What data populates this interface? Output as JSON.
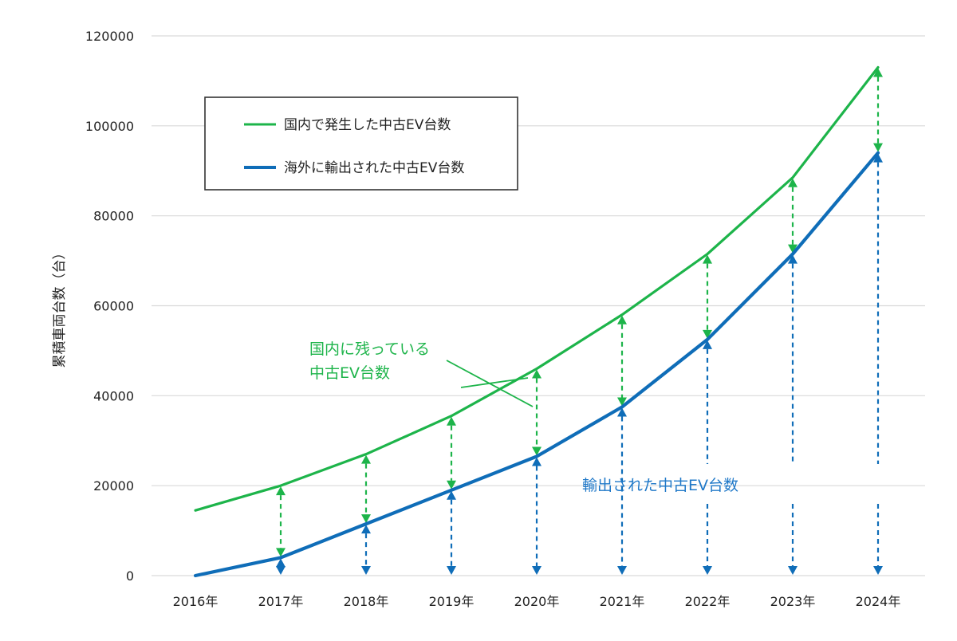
{
  "chart_data": {
    "type": "line",
    "categories": [
      "2016年",
      "2017年",
      "2018年",
      "2019年",
      "2020年",
      "2021年",
      "2022年",
      "2023年",
      "2024年"
    ],
    "ylabel": "累積車両台数（台）",
    "ylim": [
      0,
      120000
    ],
    "yticks": [
      0,
      20000,
      40000,
      60000,
      80000,
      100000,
      120000
    ],
    "ytick_labels": [
      "0",
      "20000",
      "40000",
      "60000",
      "80000",
      "100000",
      "120000"
    ],
    "grid": true,
    "legend_position": "top-left",
    "series": [
      {
        "name": "国内で発生した中古EV台数",
        "color": "#1db44a",
        "values": [
          14500,
          20000,
          27000,
          35500,
          46000,
          58000,
          71500,
          88500,
          113000
        ]
      },
      {
        "name": "海外に輸出された中古EV台数",
        "color": "#0f6db8",
        "values": [
          0,
          4000,
          11500,
          19000,
          26500,
          37500,
          52500,
          71500,
          94000
        ]
      }
    ],
    "annotations": {
      "remaining": {
        "lines": [
          "国内に残っている",
          "中古EV台数"
        ],
        "color": "#1db44a"
      },
      "exported": {
        "text": "輸出された中古EV台数",
        "color": "#1f78c8"
      }
    }
  }
}
